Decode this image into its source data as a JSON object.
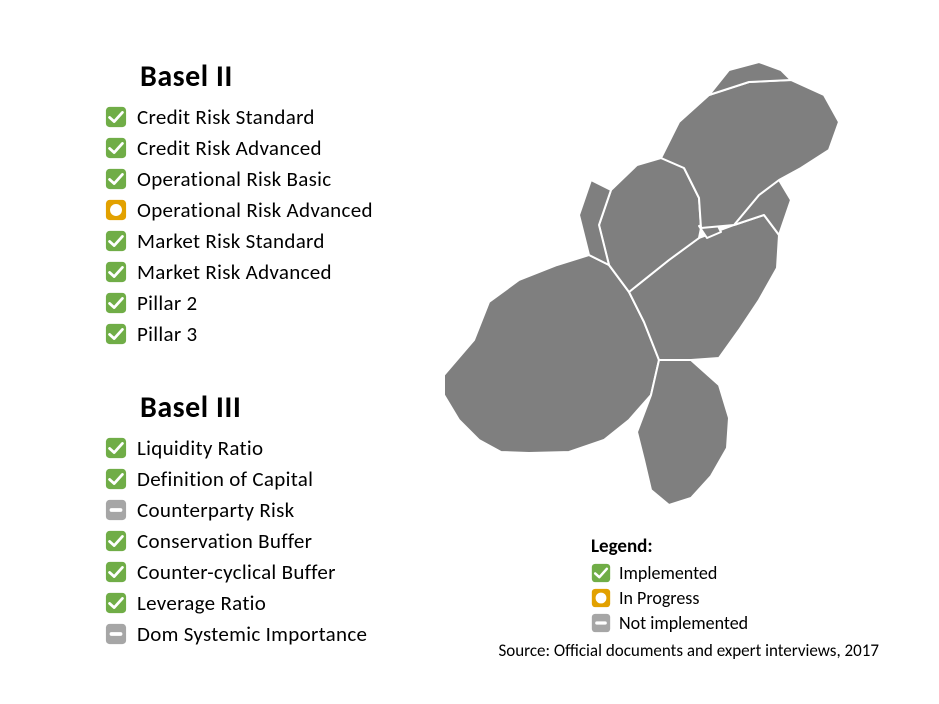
{
  "colors": {
    "implemented_fill": "#70ad47",
    "implemented_stroke": "#ffffff",
    "progress_outer": "#e2a100",
    "progress_inner": "#ffffff",
    "not_fill": "#a6a6a6",
    "not_bar": "#ffffff",
    "map_fill": "#7f7f7f",
    "map_stroke": "#ffffff",
    "text": "#000000",
    "bg": "#ffffff"
  },
  "sections": [
    {
      "title": "Basel II",
      "items": [
        {
          "status": "implemented",
          "label": "Credit Risk Standard"
        },
        {
          "status": "implemented",
          "label": "Credit Risk Advanced"
        },
        {
          "status": "implemented",
          "label": "Operational Risk Basic"
        },
        {
          "status": "progress",
          "label": "Operational Risk Advanced"
        },
        {
          "status": "implemented",
          "label": "Market Risk Standard"
        },
        {
          "status": "implemented",
          "label": "Market Risk Advanced"
        },
        {
          "status": "implemented",
          "label": "Pillar 2"
        },
        {
          "status": "implemented",
          "label": "Pillar 3"
        }
      ]
    },
    {
      "title": "Basel III",
      "items": [
        {
          "status": "implemented",
          "label": "Liquidity Ratio"
        },
        {
          "status": "implemented",
          "label": "Definition of Capital"
        },
        {
          "status": "not",
          "label": "Counterparty Risk"
        },
        {
          "status": "implemented",
          "label": "Conservation Buffer"
        },
        {
          "status": "implemented",
          "label": "Counter-cyclical Buffer"
        },
        {
          "status": "implemented",
          "label": "Leverage Ratio"
        },
        {
          "status": "not",
          "label": "Dom Systemic Importance"
        }
      ]
    }
  ],
  "legend": {
    "title": "Legend:",
    "items": [
      {
        "status": "implemented",
        "label": "Implemented"
      },
      {
        "status": "progress",
        "label": "In Progress"
      },
      {
        "status": "not",
        "label": "Not implemented"
      }
    ]
  },
  "source": "Source: Official documents and expert interviews, 2017",
  "icon_geom": {
    "corner_radius": 4
  }
}
